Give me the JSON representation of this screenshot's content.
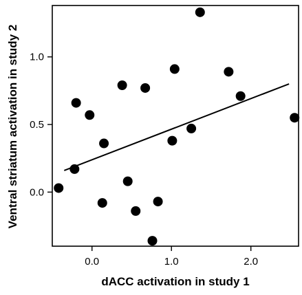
{
  "chart_data": {
    "type": "scatter",
    "xlabel": "dACC activation in study 1",
    "ylabel": "Ventral striatum activation in study 2",
    "xlim": [
      -0.5,
      2.6
    ],
    "ylim": [
      -0.4,
      1.38
    ],
    "x_ticks": [
      0.0,
      1.0,
      2.0
    ],
    "x_tick_labels": [
      "0.0",
      "1.0",
      "2.0"
    ],
    "y_ticks": [
      0.0,
      0.5,
      1.0
    ],
    "y_tick_labels": [
      "0.0",
      "0.5",
      "1.0"
    ],
    "grid": false,
    "points": [
      {
        "x": -0.42,
        "y": 0.03
      },
      {
        "x": -0.22,
        "y": 0.17
      },
      {
        "x": -0.2,
        "y": 0.66
      },
      {
        "x": -0.03,
        "y": 0.57
      },
      {
        "x": 0.13,
        "y": -0.08
      },
      {
        "x": 0.15,
        "y": 0.36
      },
      {
        "x": 0.38,
        "y": 0.79
      },
      {
        "x": 0.45,
        "y": 0.08
      },
      {
        "x": 0.55,
        "y": -0.14
      },
      {
        "x": 0.67,
        "y": 0.77
      },
      {
        "x": 0.76,
        "y": -0.36
      },
      {
        "x": 0.83,
        "y": -0.07
      },
      {
        "x": 1.01,
        "y": 0.38
      },
      {
        "x": 1.04,
        "y": 0.91
      },
      {
        "x": 1.25,
        "y": 0.47
      },
      {
        "x": 1.36,
        "y": 1.33
      },
      {
        "x": 1.72,
        "y": 0.89
      },
      {
        "x": 1.87,
        "y": 0.71
      },
      {
        "x": 2.55,
        "y": 0.55
      }
    ],
    "fit_line": {
      "x": [
        -0.35,
        2.48
      ],
      "y": [
        0.16,
        0.8
      ]
    }
  }
}
